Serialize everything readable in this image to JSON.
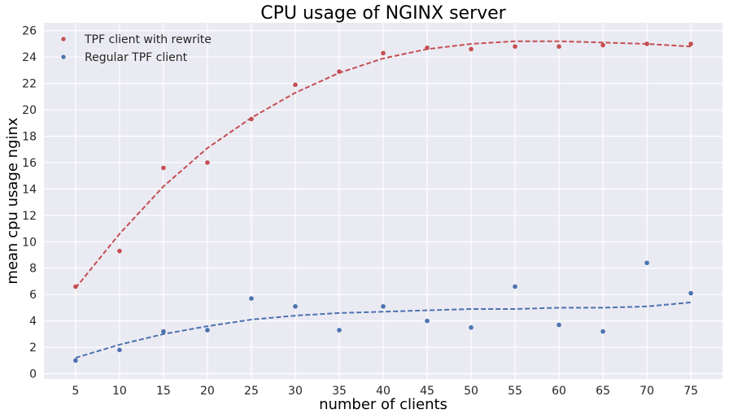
{
  "chart_data": {
    "type": "scatter",
    "title": "CPU usage of NGINX server",
    "xlabel": "number of clients",
    "ylabel": "mean cpu usage nginx",
    "x_ticks": [
      5,
      10,
      15,
      20,
      25,
      30,
      35,
      40,
      45,
      50,
      55,
      60,
      65,
      70,
      75
    ],
    "y_ticks": [
      0,
      2,
      4,
      6,
      8,
      10,
      12,
      14,
      16,
      18,
      20,
      22,
      24,
      26
    ],
    "xlim": [
      1.4,
      78.6
    ],
    "ylim": [
      -0.4,
      26.6
    ],
    "grid": true,
    "legend_position": "top-left",
    "background_color": "#eaeaf2",
    "series": [
      {
        "name": "TPF client with rewrite",
        "color": "#c44e52",
        "x": [
          5,
          10,
          15,
          20,
          25,
          30,
          35,
          40,
          45,
          50,
          55,
          60,
          65,
          70,
          75
        ],
        "y": [
          6.6,
          9.3,
          15.6,
          16.0,
          19.3,
          21.9,
          22.9,
          24.3,
          24.7,
          24.6,
          24.8,
          24.8,
          24.9,
          25.0,
          25.0
        ],
        "fit_y": [
          6.5,
          10.6,
          14.2,
          17.1,
          19.4,
          21.3,
          22.8,
          23.9,
          24.6,
          25.0,
          25.2,
          25.2,
          25.1,
          25.0,
          24.8
        ]
      },
      {
        "name": "Regular TPF client",
        "color": "#4c72b0",
        "x": [
          5,
          10,
          15,
          20,
          25,
          30,
          35,
          40,
          45,
          50,
          55,
          60,
          65,
          70,
          75
        ],
        "y": [
          1.0,
          1.8,
          3.2,
          3.3,
          5.7,
          5.1,
          3.3,
          5.1,
          4.0,
          3.5,
          6.6,
          3.7,
          3.2,
          8.4,
          6.1
        ],
        "fit_y": [
          1.2,
          2.2,
          3.0,
          3.6,
          4.1,
          4.4,
          4.6,
          4.7,
          4.8,
          4.9,
          4.9,
          5.0,
          5.0,
          5.1,
          5.4
        ]
      }
    ]
  }
}
